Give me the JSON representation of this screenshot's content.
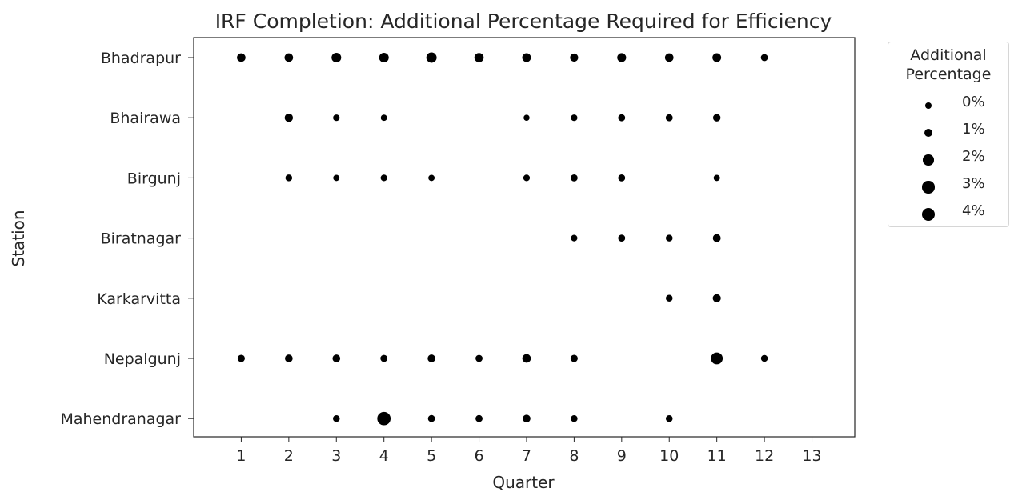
{
  "chart_data": {
    "type": "scatter",
    "title": "IRF Completion: Additional Percentage Required for Efficiency",
    "xlabel": "Quarter",
    "ylabel": "Station",
    "x_ticks": [
      1,
      2,
      3,
      4,
      5,
      6,
      7,
      8,
      9,
      10,
      11,
      12,
      13
    ],
    "xlim": [
      0,
      13.9
    ],
    "categories": [
      "Bhadrapur",
      "Bhairawa",
      "Birgunj",
      "Biratnagar",
      "Karkarvitta",
      "Nepalgunj",
      "Mahendranagar"
    ],
    "marker_color": "#000000",
    "size_legend": {
      "title_lines": [
        "Additional",
        "Percentage"
      ],
      "position": "outside-right",
      "entries": [
        {
          "label": "0%",
          "value": 0
        },
        {
          "label": "1%",
          "value": 1
        },
        {
          "label": "2%",
          "value": 2
        },
        {
          "label": "3%",
          "value": 3
        },
        {
          "label": "4%",
          "value": 4
        }
      ]
    },
    "points": [
      {
        "station": "Bhadrapur",
        "quarter": 1,
        "pct": 1.2
      },
      {
        "station": "Bhadrapur",
        "quarter": 2,
        "pct": 1.2
      },
      {
        "station": "Bhadrapur",
        "quarter": 3,
        "pct": 1.8
      },
      {
        "station": "Bhadrapur",
        "quarter": 4,
        "pct": 1.8
      },
      {
        "station": "Bhadrapur",
        "quarter": 5,
        "pct": 2.2
      },
      {
        "station": "Bhadrapur",
        "quarter": 6,
        "pct": 1.6
      },
      {
        "station": "Bhadrapur",
        "quarter": 7,
        "pct": 1.3
      },
      {
        "station": "Bhadrapur",
        "quarter": 8,
        "pct": 1.0
      },
      {
        "station": "Bhadrapur",
        "quarter": 9,
        "pct": 1.4
      },
      {
        "station": "Bhadrapur",
        "quarter": 10,
        "pct": 1.2
      },
      {
        "station": "Bhadrapur",
        "quarter": 11,
        "pct": 1.3
      },
      {
        "station": "Bhadrapur",
        "quarter": 12,
        "pct": 0.5
      },
      {
        "station": "Bhairawa",
        "quarter": 2,
        "pct": 1.1
      },
      {
        "station": "Bhairawa",
        "quarter": 3,
        "pct": 0.3
      },
      {
        "station": "Bhairawa",
        "quarter": 4,
        "pct": 0.2
      },
      {
        "station": "Bhairawa",
        "quarter": 7,
        "pct": 0.1
      },
      {
        "station": "Bhairawa",
        "quarter": 8,
        "pct": 0.3
      },
      {
        "station": "Bhairawa",
        "quarter": 9,
        "pct": 0.5
      },
      {
        "station": "Bhairawa",
        "quarter": 10,
        "pct": 0.5
      },
      {
        "station": "Bhairawa",
        "quarter": 11,
        "pct": 0.7
      },
      {
        "station": "Birgunj",
        "quarter": 2,
        "pct": 0.4
      },
      {
        "station": "Birgunj",
        "quarter": 3,
        "pct": 0.2
      },
      {
        "station": "Birgunj",
        "quarter": 4,
        "pct": 0.3
      },
      {
        "station": "Birgunj",
        "quarter": 5,
        "pct": 0.2
      },
      {
        "station": "Birgunj",
        "quarter": 7,
        "pct": 0.3
      },
      {
        "station": "Birgunj",
        "quarter": 8,
        "pct": 0.5
      },
      {
        "station": "Birgunj",
        "quarter": 9,
        "pct": 0.5
      },
      {
        "station": "Birgunj",
        "quarter": 11,
        "pct": 0.2
      },
      {
        "station": "Biratnagar",
        "quarter": 8,
        "pct": 0.3
      },
      {
        "station": "Biratnagar",
        "quarter": 9,
        "pct": 0.5
      },
      {
        "station": "Biratnagar",
        "quarter": 10,
        "pct": 0.4
      },
      {
        "station": "Biratnagar",
        "quarter": 11,
        "pct": 0.9
      },
      {
        "station": "Karkarvitta",
        "quarter": 10,
        "pct": 0.4
      },
      {
        "station": "Karkarvitta",
        "quarter": 11,
        "pct": 1.0
      },
      {
        "station": "Nepalgunj",
        "quarter": 1,
        "pct": 0.6
      },
      {
        "station": "Nepalgunj",
        "quarter": 2,
        "pct": 0.8
      },
      {
        "station": "Nepalgunj",
        "quarter": 3,
        "pct": 0.8
      },
      {
        "station": "Nepalgunj",
        "quarter": 4,
        "pct": 0.5
      },
      {
        "station": "Nepalgunj",
        "quarter": 5,
        "pct": 0.8
      },
      {
        "station": "Nepalgunj",
        "quarter": 6,
        "pct": 0.5
      },
      {
        "station": "Nepalgunj",
        "quarter": 7,
        "pct": 1.2
      },
      {
        "station": "Nepalgunj",
        "quarter": 8,
        "pct": 0.6
      },
      {
        "station": "Nepalgunj",
        "quarter": 11,
        "pct": 3.2
      },
      {
        "station": "Nepalgunj",
        "quarter": 12,
        "pct": 0.4
      },
      {
        "station": "Mahendranagar",
        "quarter": 3,
        "pct": 0.4
      },
      {
        "station": "Mahendranagar",
        "quarter": 4,
        "pct": 4.3
      },
      {
        "station": "Mahendranagar",
        "quarter": 5,
        "pct": 0.5
      },
      {
        "station": "Mahendranagar",
        "quarter": 6,
        "pct": 0.5
      },
      {
        "station": "Mahendranagar",
        "quarter": 7,
        "pct": 0.8
      },
      {
        "station": "Mahendranagar",
        "quarter": 8,
        "pct": 0.4
      },
      {
        "station": "Mahendranagar",
        "quarter": 10,
        "pct": 0.4
      }
    ]
  }
}
